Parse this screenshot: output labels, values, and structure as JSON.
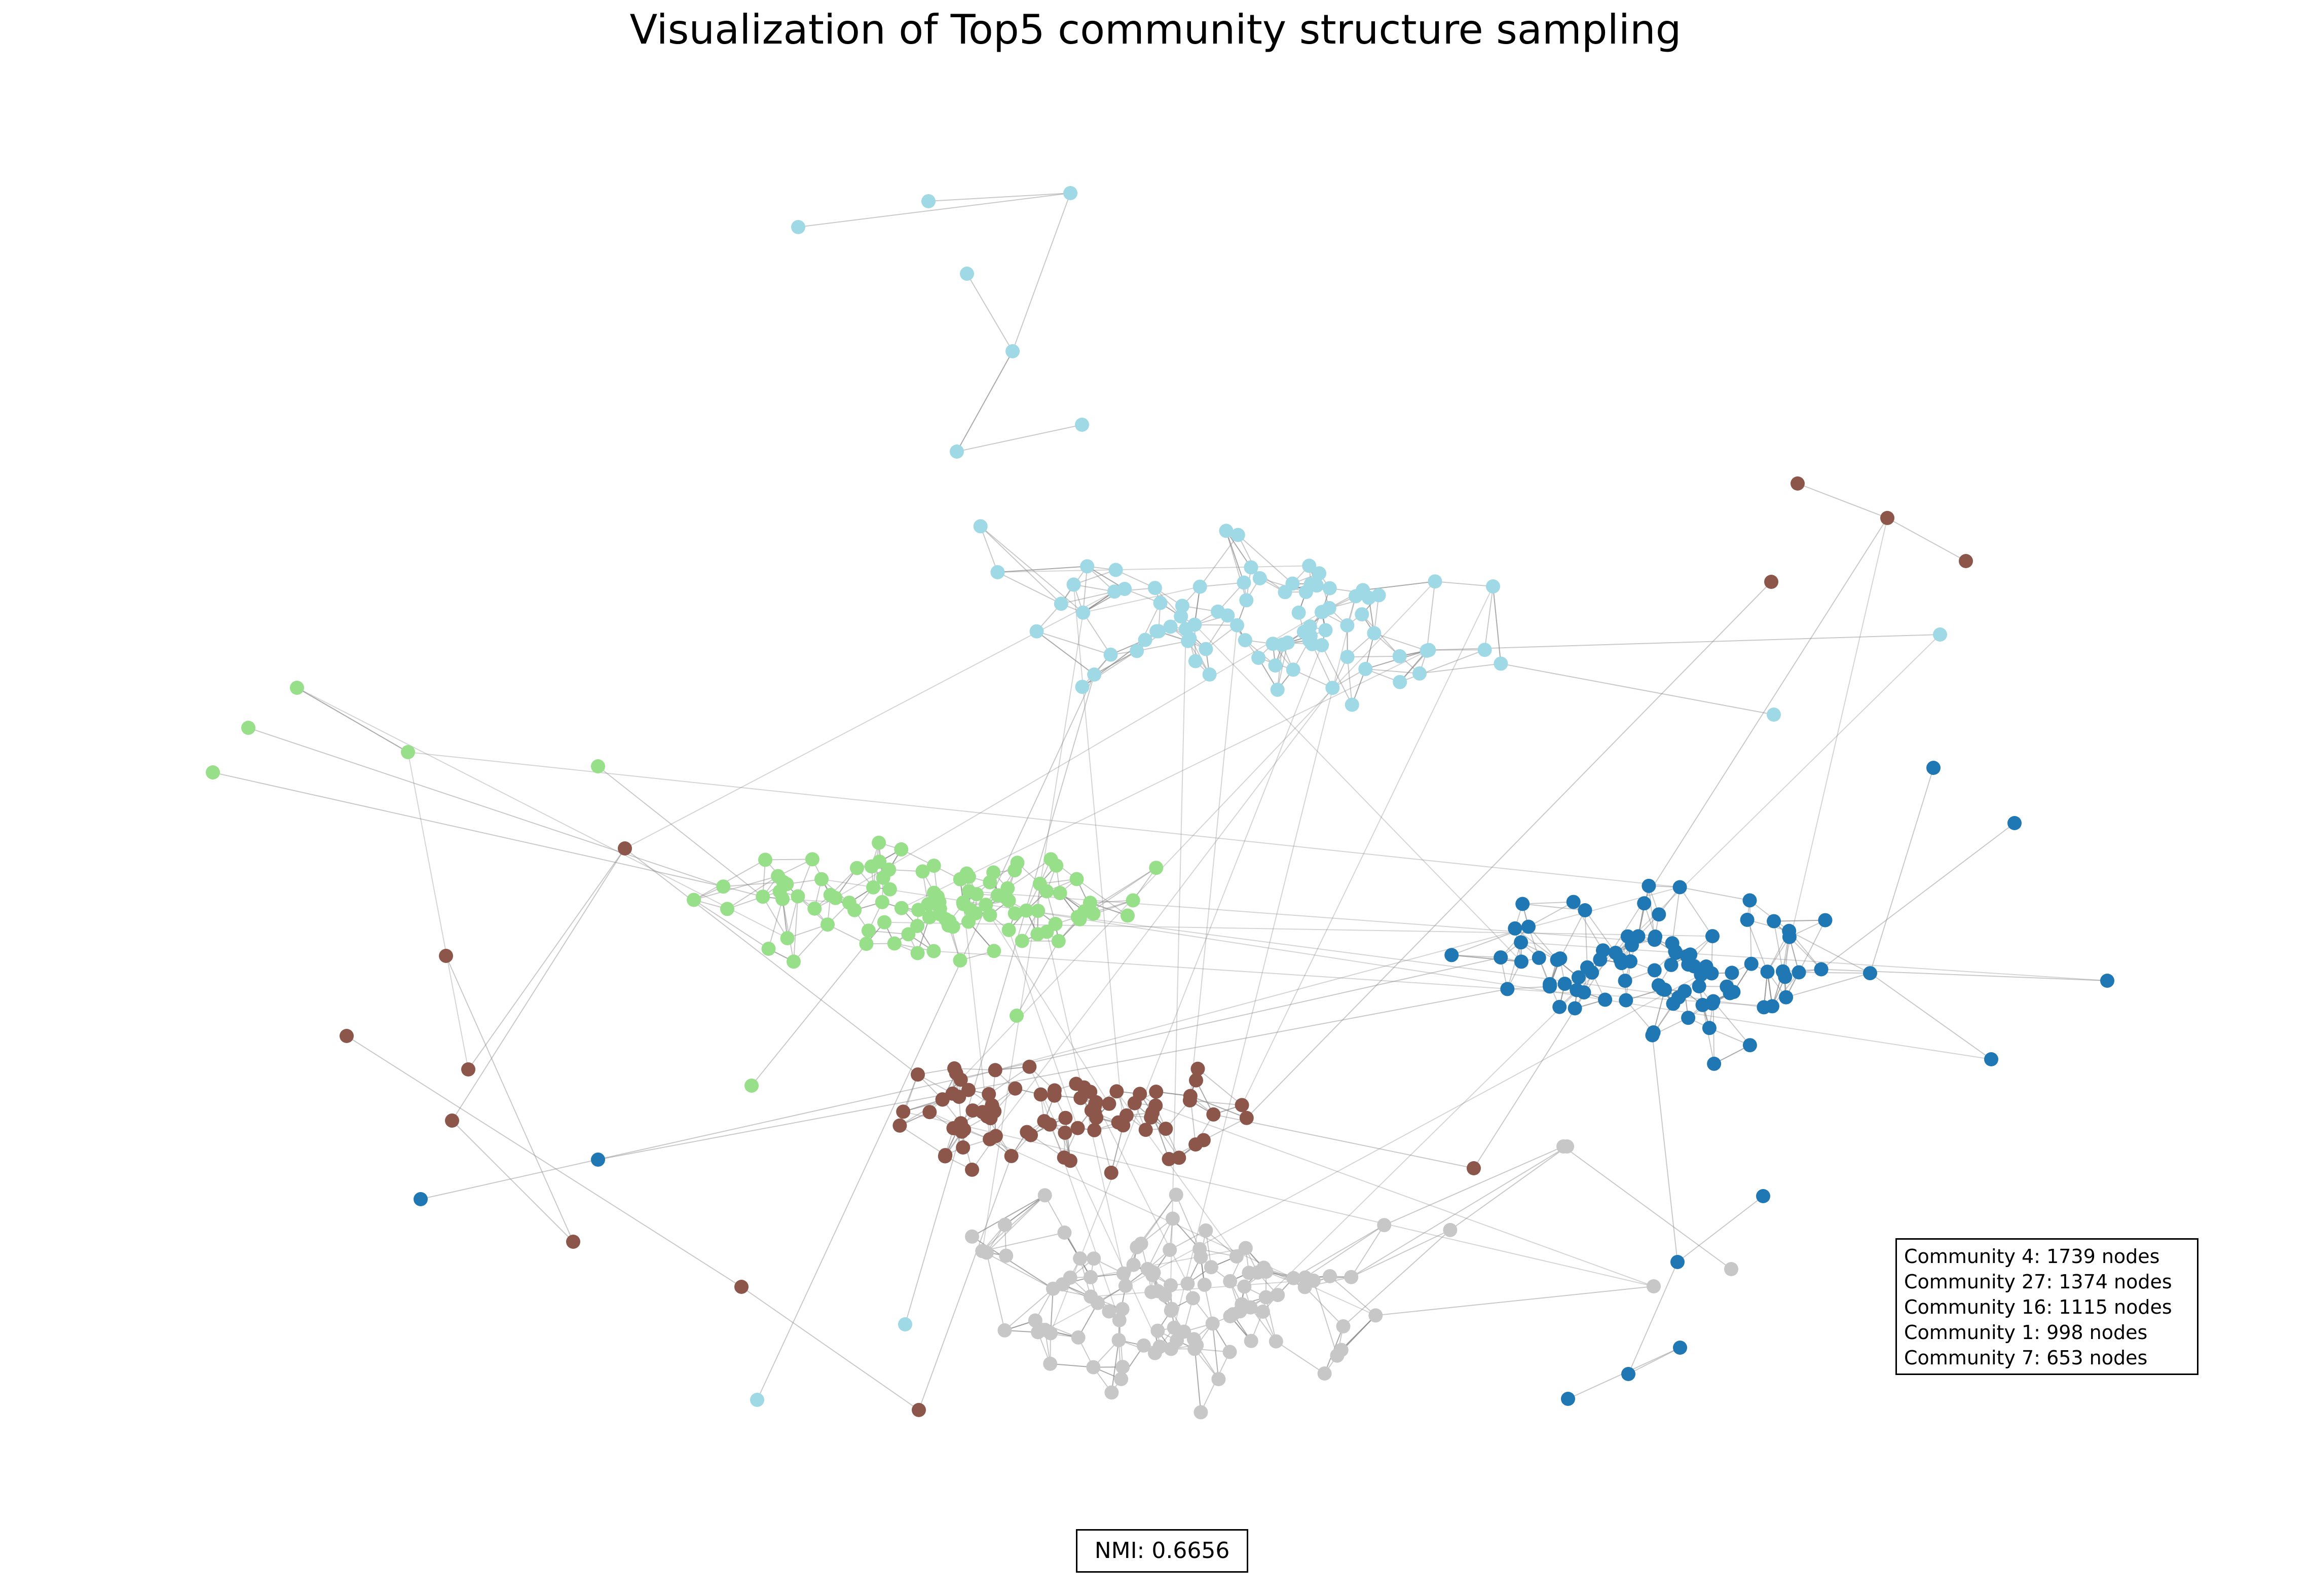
{
  "title": "Visualization of Top5 community structure sampling",
  "legend": [
    "Community 4: 1739 nodes",
    "Community 27: 1374 nodes",
    "Community 16: 1115 nodes",
    "Community 1: 998 nodes",
    "Community 7: 653 nodes"
  ],
  "nmi": "NMI: 0.6656",
  "communities": [
    {
      "id": "light-blue",
      "color": "#9ed9e5",
      "cluster_nodes": 85
    },
    {
      "id": "green",
      "color": "#98df8a",
      "cluster_nodes": 100
    },
    {
      "id": "dark-blue",
      "color": "#1f77b4",
      "cluster_nodes": 90
    },
    {
      "id": "brown",
      "color": "#8c564b",
      "cluster_nodes": 80
    },
    {
      "id": "gray",
      "color": "#c7c7c7",
      "cluster_nodes": 100
    }
  ],
  "edge_color": "#888888"
}
